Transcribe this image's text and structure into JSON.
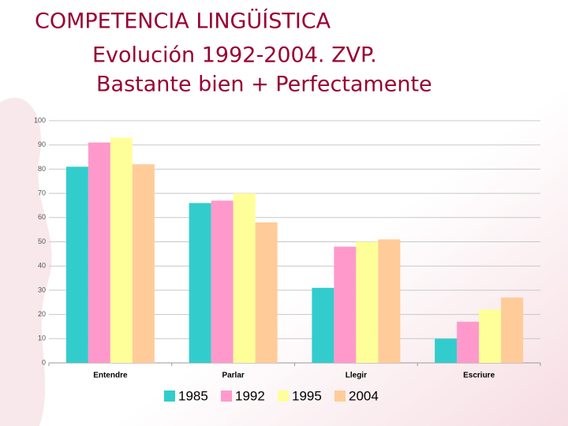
{
  "chart_data": {
    "type": "bar",
    "title_lines": [
      "COMPETENCIA LINGÜÍSTICA",
      "Evolución 1992-2004. ZVP.",
      "Bastante bien + Perfectamente"
    ],
    "categories": [
      "Entendre",
      "Parlar",
      "Llegir",
      "Escriure"
    ],
    "series": [
      {
        "name": "1985",
        "color": "#33cccc",
        "values": [
          81,
          66,
          31,
          10
        ]
      },
      {
        "name": "1992",
        "color": "#ff99cc",
        "values": [
          91,
          67,
          48,
          17
        ]
      },
      {
        "name": "1995",
        "color": "#ffff99",
        "values": [
          93,
          70,
          50,
          22
        ]
      },
      {
        "name": "2004",
        "color": "#ffcc99",
        "values": [
          82,
          58,
          51,
          27
        ]
      }
    ],
    "ylim": [
      0,
      100
    ],
    "yticks": [
      0,
      10,
      20,
      30,
      40,
      50,
      60,
      70,
      80,
      90,
      100
    ],
    "grid": true,
    "legend": "bottom"
  }
}
